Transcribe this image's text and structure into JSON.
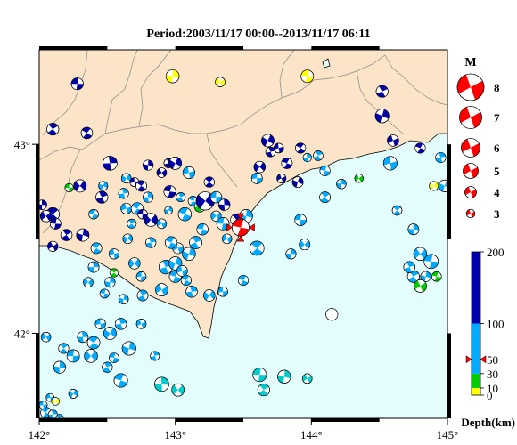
{
  "title": "Period:2003/11/17 00:00--2013/11/17 06:11",
  "map": {
    "lon_range": [
      142,
      145
    ],
    "lat_range": [
      41.55,
      43.5
    ],
    "x_ticks": [
      "142°",
      "143°",
      "144°",
      "145°"
    ],
    "y_ticks": [
      "43°",
      "42°"
    ],
    "land_color": "#fbe4c8",
    "sea_color": "#e3fdfd",
    "event_marker": {
      "lon": 143.48,
      "lat": 42.56,
      "color": "#ff0000",
      "mag": 5.2
    }
  },
  "magnitude_legend": {
    "title": "M",
    "items": [
      "8",
      "7",
      "6",
      "5",
      "4",
      "3"
    ],
    "color": "#ff0000"
  },
  "depth_scale": {
    "ticks": [
      "200",
      "100",
      "50",
      "30",
      "10",
      "0"
    ],
    "label": "Depth(km)",
    "marker_depth": 50,
    "colors": [
      {
        "to": 10,
        "color": "#ffff00"
      },
      {
        "to": 30,
        "color": "#00cc00"
      },
      {
        "to": 100,
        "color": "#00aaff"
      },
      {
        "to": 200,
        "color": "#0000aa"
      }
    ]
  },
  "mechanisms": [
    {
      "lon": 142.28,
      "lat": 43.32,
      "m": 4.3,
      "c": "#0000aa"
    },
    {
      "lon": 142.1,
      "lat": 43.08,
      "m": 4.3,
      "c": "#0000aa"
    },
    {
      "lon": 142.98,
      "lat": 43.36,
      "m": 4.5,
      "c": "#ffff00"
    },
    {
      "lon": 143.33,
      "lat": 43.33,
      "m": 3.9,
      "c": "#ffff00"
    },
    {
      "lon": 143.97,
      "lat": 43.36,
      "m": 4.4,
      "c": "#ffff00"
    },
    {
      "lon": 144.52,
      "lat": 43.28,
      "m": 4.3,
      "c": "#0000aa"
    },
    {
      "lon": 144.52,
      "lat": 43.15,
      "m": 4.6,
      "c": "#0000aa"
    },
    {
      "lon": 144.6,
      "lat": 43.02,
      "m": 4.2,
      "c": "#0000aa"
    },
    {
      "lon": 144.8,
      "lat": 42.98,
      "m": 4.0,
      "c": "#0000aa"
    },
    {
      "lon": 144.95,
      "lat": 42.93,
      "m": 4.0,
      "c": "#00aaff"
    },
    {
      "lon": 144.9,
      "lat": 42.78,
      "m": 3.8,
      "c": "#ffff00"
    },
    {
      "lon": 144.58,
      "lat": 42.9,
      "m": 4.6,
      "c": "#00aaff"
    },
    {
      "lon": 142.35,
      "lat": 43.06,
      "m": 4.2,
      "c": "#0000aa"
    },
    {
      "lon": 142.52,
      "lat": 42.9,
      "m": 4.7,
      "c": "#0000aa"
    },
    {
      "lon": 142.3,
      "lat": 42.78,
      "m": 4.4,
      "c": "#0000aa"
    },
    {
      "lon": 142.22,
      "lat": 42.77,
      "m": 3.7,
      "c": "#00cc00"
    },
    {
      "lon": 142.1,
      "lat": 42.63,
      "m": 4.5,
      "c": "#0000aa"
    },
    {
      "lon": 142.02,
      "lat": 42.68,
      "m": 3.9,
      "c": "#0000aa"
    },
    {
      "lon": 142.05,
      "lat": 42.62,
      "m": 4.2,
      "c": "#0000aa"
    },
    {
      "lon": 142.12,
      "lat": 42.58,
      "m": 4.1,
      "c": "#0000aa"
    },
    {
      "lon": 142.2,
      "lat": 42.52,
      "m": 4.2,
      "c": "#0000aa"
    },
    {
      "lon": 142.32,
      "lat": 42.52,
      "m": 4.4,
      "c": "#0000aa"
    },
    {
      "lon": 142.1,
      "lat": 42.46,
      "m": 4.0,
      "c": "#0000aa"
    },
    {
      "lon": 142.4,
      "lat": 42.63,
      "m": 3.9,
      "c": "#00aaff"
    },
    {
      "lon": 142.46,
      "lat": 42.72,
      "m": 4.3,
      "c": "#0000aa"
    },
    {
      "lon": 142.47,
      "lat": 42.78,
      "m": 3.8,
      "c": "#00aaff"
    },
    {
      "lon": 142.64,
      "lat": 42.66,
      "m": 4.1,
      "c": "#00aaff"
    },
    {
      "lon": 142.72,
      "lat": 42.66,
      "m": 4.3,
      "c": "#00aaff"
    },
    {
      "lon": 142.62,
      "lat": 42.74,
      "m": 4.0,
      "c": "#00aaff"
    },
    {
      "lon": 142.64,
      "lat": 42.82,
      "m": 3.9,
      "c": "#00aaff"
    },
    {
      "lon": 142.7,
      "lat": 42.8,
      "m": 3.8,
      "c": "#0000aa"
    },
    {
      "lon": 142.75,
      "lat": 42.78,
      "m": 4.1,
      "c": "#0000aa"
    },
    {
      "lon": 142.8,
      "lat": 42.72,
      "m": 4.0,
      "c": "#00aaff"
    },
    {
      "lon": 142.82,
      "lat": 42.6,
      "m": 4.5,
      "c": "#0000aa"
    },
    {
      "lon": 142.76,
      "lat": 42.63,
      "m": 3.9,
      "c": "#0000aa"
    },
    {
      "lon": 142.68,
      "lat": 42.58,
      "m": 3.8,
      "c": "#00aaff"
    },
    {
      "lon": 142.8,
      "lat": 42.89,
      "m": 4.0,
      "c": "#0000aa"
    },
    {
      "lon": 142.9,
      "lat": 42.85,
      "m": 3.9,
      "c": "#0000aa"
    },
    {
      "lon": 142.96,
      "lat": 42.75,
      "m": 4.3,
      "c": "#0000aa"
    },
    {
      "lon": 143.04,
      "lat": 42.72,
      "m": 3.8,
      "c": "#00aaff"
    },
    {
      "lon": 142.95,
      "lat": 42.65,
      "m": 3.6,
      "c": "#00aaff"
    },
    {
      "lon": 142.9,
      "lat": 42.58,
      "m": 3.9,
      "c": "#00aaff"
    },
    {
      "lon": 143.07,
      "lat": 42.63,
      "m": 4.5,
      "c": "#00aaff"
    },
    {
      "lon": 142.95,
      "lat": 42.9,
      "m": 3.8,
      "c": "#0000aa"
    },
    {
      "lon": 143.0,
      "lat": 42.9,
      "m": 4.4,
      "c": "#0000aa"
    },
    {
      "lon": 143.1,
      "lat": 42.85,
      "m": 4.3,
      "c": "#00aaff"
    },
    {
      "lon": 143.13,
      "lat": 42.7,
      "m": 3.9,
      "c": "#00aaff"
    },
    {
      "lon": 143.18,
      "lat": 42.67,
      "m": 4.1,
      "c": "#00cc00"
    },
    {
      "lon": 143.22,
      "lat": 42.7,
      "m": 5.4,
      "c": "#0000aa"
    },
    {
      "lon": 143.3,
      "lat": 42.72,
      "m": 4.2,
      "c": "#00aaff"
    },
    {
      "lon": 143.25,
      "lat": 42.8,
      "m": 4.0,
      "c": "#0000aa"
    },
    {
      "lon": 143.36,
      "lat": 42.68,
      "m": 4.2,
      "c": "#0000aa"
    },
    {
      "lon": 143.3,
      "lat": 42.62,
      "m": 4.0,
      "c": "#00aaff"
    },
    {
      "lon": 143.35,
      "lat": 42.58,
      "m": 4.4,
      "c": "#00aaff"
    },
    {
      "lon": 143.45,
      "lat": 42.6,
      "m": 4.3,
      "c": "#0000aa"
    },
    {
      "lon": 143.52,
      "lat": 42.62,
      "m": 4.5,
      "c": "#00aaff"
    },
    {
      "lon": 143.38,
      "lat": 42.5,
      "m": 3.9,
      "c": "#00aaff"
    },
    {
      "lon": 143.2,
      "lat": 42.55,
      "m": 4.2,
      "c": "#00aaff"
    },
    {
      "lon": 143.15,
      "lat": 42.48,
      "m": 4.4,
      "c": "#00aaff"
    },
    {
      "lon": 143.1,
      "lat": 42.42,
      "m": 4.5,
      "c": "#00aaff"
    },
    {
      "lon": 143.02,
      "lat": 42.45,
      "m": 4.1,
      "c": "#00aaff"
    },
    {
      "lon": 142.97,
      "lat": 42.48,
      "m": 4.3,
      "c": "#00aaff"
    },
    {
      "lon": 142.82,
      "lat": 42.48,
      "m": 4.0,
      "c": "#00aaff"
    },
    {
      "lon": 142.65,
      "lat": 42.5,
      "m": 3.9,
      "c": "#00aaff"
    },
    {
      "lon": 142.55,
      "lat": 42.42,
      "m": 4.0,
      "c": "#00aaff"
    },
    {
      "lon": 142.42,
      "lat": 42.45,
      "m": 4.1,
      "c": "#00aaff"
    },
    {
      "lon": 142.4,
      "lat": 42.35,
      "m": 4.1,
      "c": "#00aaff"
    },
    {
      "lon": 142.7,
      "lat": 42.37,
      "m": 4.2,
      "c": "#00aaff"
    },
    {
      "lon": 142.75,
      "lat": 42.3,
      "m": 3.9,
      "c": "#00aaff"
    },
    {
      "lon": 142.55,
      "lat": 42.32,
      "m": 3.7,
      "c": "#00cc00"
    },
    {
      "lon": 142.52,
      "lat": 42.27,
      "m": 4.0,
      "c": "#00aaff"
    },
    {
      "lon": 142.36,
      "lat": 42.27,
      "m": 3.9,
      "c": "#00aaff"
    },
    {
      "lon": 142.48,
      "lat": 42.21,
      "m": 3.8,
      "c": "#00aaff"
    },
    {
      "lon": 142.76,
      "lat": 42.2,
      "m": 4.1,
      "c": "#00aaff"
    },
    {
      "lon": 142.62,
      "lat": 42.18,
      "m": 3.9,
      "c": "#00aaff"
    },
    {
      "lon": 142.9,
      "lat": 42.23,
      "m": 4.4,
      "c": "#00aaff"
    },
    {
      "lon": 143.0,
      "lat": 42.3,
      "m": 4.3,
      "c": "#00aaff"
    },
    {
      "lon": 142.93,
      "lat": 42.35,
      "m": 4.6,
      "c": "#00aaff"
    },
    {
      "lon": 143.0,
      "lat": 42.37,
      "m": 4.5,
      "c": "#00aaff"
    },
    {
      "lon": 143.05,
      "lat": 42.33,
      "m": 4.1,
      "c": "#00aaff"
    },
    {
      "lon": 143.08,
      "lat": 42.28,
      "m": 4.0,
      "c": "#00aaff"
    },
    {
      "lon": 143.12,
      "lat": 42.22,
      "m": 4.2,
      "c": "#00aaff"
    },
    {
      "lon": 143.25,
      "lat": 42.2,
      "m": 4.2,
      "c": "#00aaff"
    },
    {
      "lon": 143.35,
      "lat": 42.22,
      "m": 3.9,
      "c": "#00aaff"
    },
    {
      "lon": 143.6,
      "lat": 42.45,
      "m": 4.7,
      "c": "#00aaff"
    },
    {
      "lon": 143.85,
      "lat": 42.42,
      "m": 4.0,
      "c": "#00aaff"
    },
    {
      "lon": 143.95,
      "lat": 42.47,
      "m": 4.1,
      "c": "#00aaff"
    },
    {
      "lon": 143.92,
      "lat": 42.6,
      "m": 4.2,
      "c": "#00aaff"
    },
    {
      "lon": 144.1,
      "lat": 42.72,
      "m": 4.1,
      "c": "#00aaff"
    },
    {
      "lon": 144.22,
      "lat": 42.79,
      "m": 3.9,
      "c": "#00aaff"
    },
    {
      "lon": 144.35,
      "lat": 42.82,
      "m": 3.7,
      "c": "#00cc00"
    },
    {
      "lon": 144.1,
      "lat": 42.86,
      "m": 4.0,
      "c": "#00aaff"
    },
    {
      "lon": 144.05,
      "lat": 42.94,
      "m": 3.9,
      "c": "#00aaff"
    },
    {
      "lon": 143.9,
      "lat": 42.8,
      "m": 4.1,
      "c": "#0000aa"
    },
    {
      "lon": 143.78,
      "lat": 42.82,
      "m": 3.8,
      "c": "#0000aa"
    },
    {
      "lon": 143.82,
      "lat": 42.9,
      "m": 4.1,
      "c": "#0000aa"
    },
    {
      "lon": 143.7,
      "lat": 42.96,
      "m": 3.9,
      "c": "#0000aa"
    },
    {
      "lon": 143.68,
      "lat": 43.02,
      "m": 4.4,
      "c": "#0000aa"
    },
    {
      "lon": 143.76,
      "lat": 42.98,
      "m": 3.9,
      "c": "#0000aa"
    },
    {
      "lon": 143.92,
      "lat": 42.98,
      "m": 4.0,
      "c": "#0000aa"
    },
    {
      "lon": 143.97,
      "lat": 42.93,
      "m": 3.7,
      "c": "#00aaff"
    },
    {
      "lon": 143.62,
      "lat": 42.88,
      "m": 4.2,
      "c": "#0000aa"
    },
    {
      "lon": 143.6,
      "lat": 42.82,
      "m": 4.1,
      "c": "#00aaff"
    },
    {
      "lon": 144.63,
      "lat": 42.65,
      "m": 3.9,
      "c": "#00aaff"
    },
    {
      "lon": 144.75,
      "lat": 42.55,
      "m": 4.1,
      "c": "#00aaff"
    },
    {
      "lon": 144.8,
      "lat": 42.42,
      "m": 4.5,
      "c": "#00aaff"
    },
    {
      "lon": 144.88,
      "lat": 42.38,
      "m": 4.7,
      "c": "#00aaff"
    },
    {
      "lon": 144.75,
      "lat": 42.3,
      "m": 4.3,
      "c": "#00aaff"
    },
    {
      "lon": 144.84,
      "lat": 42.3,
      "m": 4.0,
      "c": "#00aaff"
    },
    {
      "lon": 144.8,
      "lat": 42.25,
      "m": 4.4,
      "c": "#00cc00"
    },
    {
      "lon": 144.92,
      "lat": 42.3,
      "m": 3.9,
      "c": "#00cc00"
    },
    {
      "lon": 144.72,
      "lat": 42.35,
      "m": 4.2,
      "c": "#00aaff"
    },
    {
      "lon": 144.98,
      "lat": 42.78,
      "m": 4.3,
      "c": "#00aaff"
    },
    {
      "lon": 144.15,
      "lat": 42.1,
      "m": 4.3,
      "c": "#ffffff"
    },
    {
      "lon": 143.5,
      "lat": 42.28,
      "m": 4.0,
      "c": "#00aaff"
    },
    {
      "lon": 142.6,
      "lat": 42.05,
      "m": 4.2,
      "c": "#00aaff"
    },
    {
      "lon": 142.52,
      "lat": 42.0,
      "m": 4.4,
      "c": "#00aaff"
    },
    {
      "lon": 142.45,
      "lat": 42.05,
      "m": 4.0,
      "c": "#00aaff"
    },
    {
      "lon": 142.4,
      "lat": 41.95,
      "m": 4.4,
      "c": "#00aaff"
    },
    {
      "lon": 142.32,
      "lat": 41.98,
      "m": 4.1,
      "c": "#00aaff"
    },
    {
      "lon": 142.38,
      "lat": 41.88,
      "m": 4.5,
      "c": "#00aaff"
    },
    {
      "lon": 142.25,
      "lat": 41.88,
      "m": 4.4,
      "c": "#00aaff"
    },
    {
      "lon": 142.18,
      "lat": 41.92,
      "m": 4.0,
      "c": "#00aaff"
    },
    {
      "lon": 142.15,
      "lat": 41.82,
      "m": 4.3,
      "c": "#00aaff"
    },
    {
      "lon": 142.05,
      "lat": 41.98,
      "m": 3.9,
      "c": "#00aaff"
    },
    {
      "lon": 142.55,
      "lat": 41.87,
      "m": 3.9,
      "c": "#00aaff"
    },
    {
      "lon": 142.5,
      "lat": 41.82,
      "m": 4.0,
      "c": "#00aaff"
    },
    {
      "lon": 142.66,
      "lat": 41.92,
      "m": 4.6,
      "c": "#00aaff"
    },
    {
      "lon": 142.75,
      "lat": 42.05,
      "m": 3.9,
      "c": "#00aaff"
    },
    {
      "lon": 142.6,
      "lat": 41.75,
      "m": 4.6,
      "c": "#00aaff"
    },
    {
      "lon": 142.85,
      "lat": 41.88,
      "m": 3.8,
      "c": "#00aaff"
    },
    {
      "lon": 142.25,
      "lat": 41.68,
      "m": 3.8,
      "c": "#00aaff"
    },
    {
      "lon": 142.08,
      "lat": 41.66,
      "m": 3.6,
      "c": "#00aaff"
    },
    {
      "lon": 142.05,
      "lat": 41.58,
      "m": 4.1,
      "c": "#00aaff"
    },
    {
      "lon": 142.1,
      "lat": 41.57,
      "m": 3.8,
      "c": "#00aaff"
    },
    {
      "lon": 142.12,
      "lat": 41.64,
      "m": 3.6,
      "c": "#ffff00"
    },
    {
      "lon": 142.03,
      "lat": 41.62,
      "m": 3.6,
      "c": "#00aaff"
    },
    {
      "lon": 142.15,
      "lat": 41.55,
      "m": 3.6,
      "c": "#00aaff"
    },
    {
      "lon": 142.9,
      "lat": 41.73,
      "m": 4.7,
      "c": "#00cccc"
    },
    {
      "lon": 143.02,
      "lat": 41.7,
      "m": 4.4,
      "c": "#00cccc"
    },
    {
      "lon": 143.62,
      "lat": 41.78,
      "m": 4.6,
      "c": "#00cccc"
    },
    {
      "lon": 143.65,
      "lat": 41.7,
      "m": 4.3,
      "c": "#00cccc"
    },
    {
      "lon": 143.8,
      "lat": 41.77,
      "m": 4.5,
      "c": "#00cccc"
    },
    {
      "lon": 143.97,
      "lat": 41.76,
      "m": 3.9,
      "c": "#00cccc"
    }
  ]
}
